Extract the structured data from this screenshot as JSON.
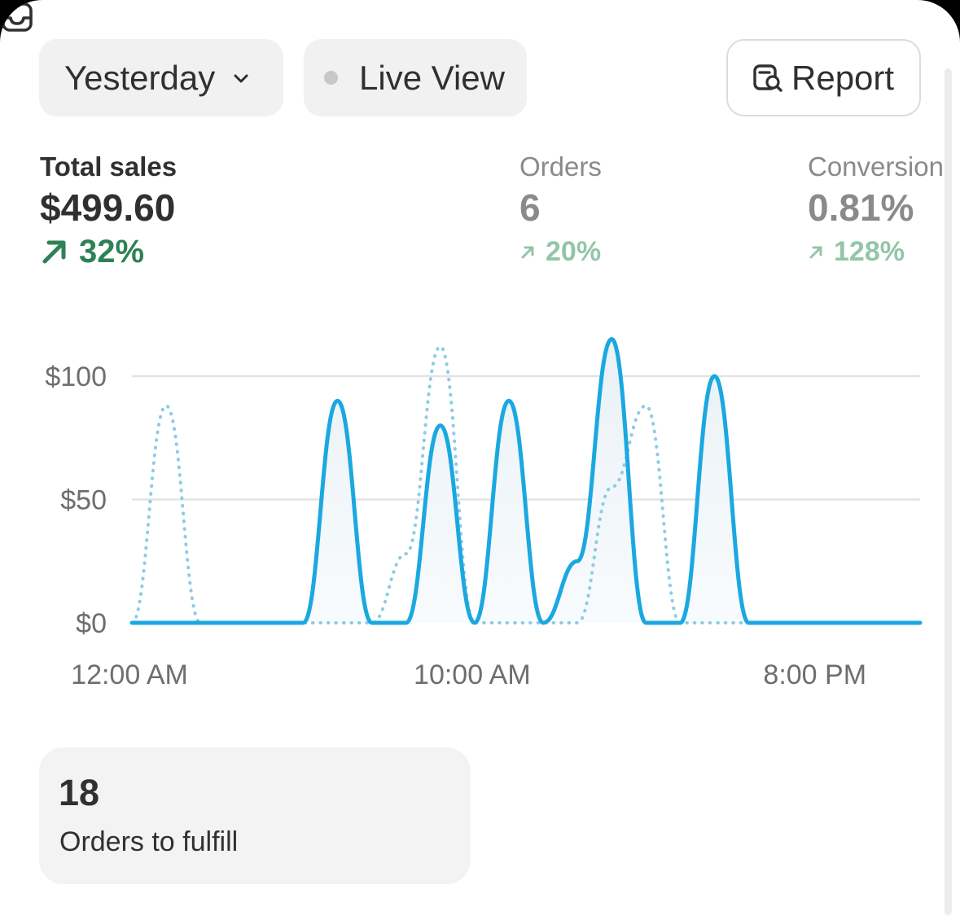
{
  "filters": {
    "period_label": "Yesterday",
    "live_view_label": "Live View",
    "report_label": "Report"
  },
  "metrics": {
    "total_sales": {
      "label": "Total sales",
      "value": "$499.60",
      "change": "32%"
    },
    "orders": {
      "label": "Orders",
      "value": "6",
      "change": "20%"
    },
    "conversion": {
      "label": "Conversion",
      "value": "0.81%",
      "change": "128%"
    }
  },
  "chart_data": {
    "type": "line",
    "y_tick_labels": [
      "$0",
      "$50",
      "$100"
    ],
    "x_tick_labels": [
      "12:00 AM",
      "10:00 AM",
      "8:00 PM"
    ],
    "ylim": [
      0,
      100
    ],
    "grid": true,
    "x": [
      0,
      1,
      2,
      3,
      4,
      5,
      6,
      7,
      8,
      9,
      10,
      11,
      12,
      13,
      14,
      15,
      16,
      17,
      18,
      19,
      20,
      21,
      22,
      23
    ],
    "series": [
      {
        "style": "solid",
        "color": "#1ba8e0",
        "values": [
          0,
          0,
          0,
          0,
          0,
          0,
          90,
          0,
          0,
          80,
          0,
          90,
          0,
          25,
          115,
          0,
          0,
          100,
          0,
          0,
          0,
          0,
          0,
          0
        ]
      },
      {
        "style": "dotted",
        "color": "#8ccbe6",
        "values": [
          0,
          88,
          0,
          0,
          0,
          0,
          0,
          0,
          28,
          112,
          0,
          0,
          0,
          0,
          55,
          88,
          0,
          0,
          0,
          0,
          0,
          0,
          0,
          0
        ]
      }
    ]
  },
  "fulfill_card": {
    "count": "18",
    "label": "Orders to fulfill",
    "icon": "inbox-icon"
  },
  "colors": {
    "accent": "#1ba8e0",
    "positive": "#2e8156",
    "positive_muted": "#93c5a7",
    "text": "#303030",
    "muted": "#8a8a8a"
  }
}
